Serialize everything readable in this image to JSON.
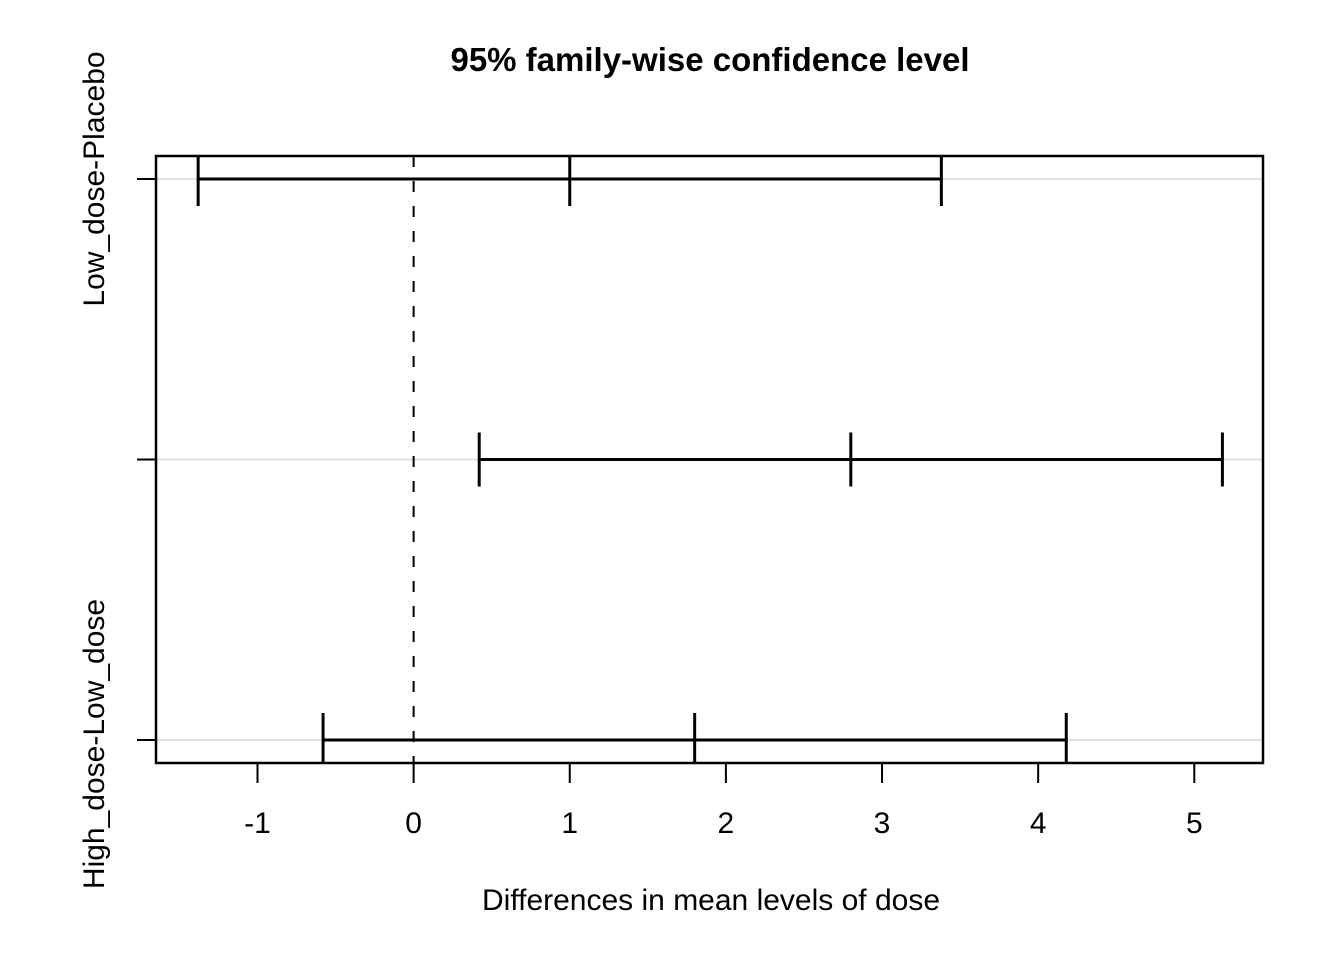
{
  "chart_data": {
    "type": "scatter",
    "variant": "horizontal-confidence-intervals (R TukeyHSD plot)",
    "title": "95% family-wise confidence level",
    "xlabel": "Differences in mean levels of dose",
    "ylabel": "",
    "x_ticks": [
      -1,
      0,
      1,
      2,
      3,
      4,
      5
    ],
    "x_tick_labels": [
      "-1",
      "0",
      "1",
      "2",
      "3",
      "4",
      "5"
    ],
    "xlim": [
      -1.65,
      5.44
    ],
    "ylim": [
      0.918,
      3.082
    ],
    "grid": "light horizontal line at each comparison row",
    "legend": "none",
    "zero_reference_line": {
      "x": 0,
      "style": "dashed"
    },
    "rows": [
      {
        "label": "Low_dose-Placebo",
        "y": 3,
        "diff": 1.0,
        "lwr": -1.38,
        "upr": 3.38
      },
      {
        "label": "",
        "y": 2,
        "diff": 2.8,
        "lwr": 0.42,
        "upr": 5.18
      },
      {
        "label": "High_dose-Low_dose",
        "y": 1,
        "diff": 1.8,
        "lwr": -0.58,
        "upr": 4.18
      }
    ],
    "colors": {
      "line": "#000000",
      "grid": "#d9d9d9",
      "background": "#ffffff"
    }
  }
}
